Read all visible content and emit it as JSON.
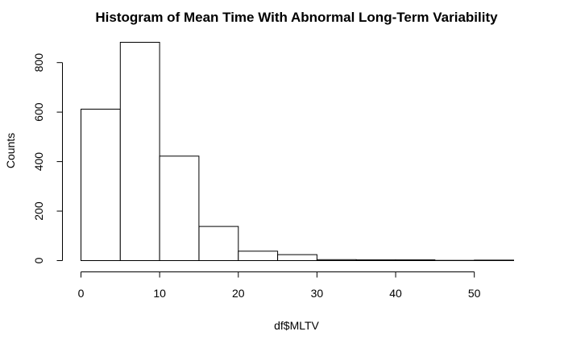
{
  "chart_data": {
    "type": "bar",
    "title": "Histogram of Mean Time With Abnormal Long-Term Variability",
    "xlabel": "df$MLTV",
    "ylabel": "Counts",
    "bin_edges": [
      0,
      5,
      10,
      15,
      20,
      25,
      30,
      35,
      40,
      45,
      50,
      55
    ],
    "values": [
      612,
      882,
      422,
      138,
      38,
      24,
      4,
      3,
      3,
      1,
      2
    ],
    "xlim": [
      0,
      55
    ],
    "ylim": [
      0,
      882
    ],
    "x_ticks": [
      0,
      10,
      20,
      30,
      40,
      50
    ],
    "y_ticks": [
      0,
      200,
      400,
      600,
      800
    ],
    "grid": false,
    "bar_fill": "#ffffff",
    "bar_stroke": "#000000"
  }
}
